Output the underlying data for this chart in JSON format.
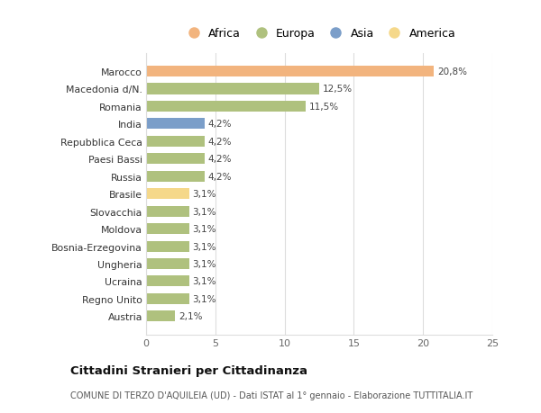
{
  "categories": [
    "Austria",
    "Regno Unito",
    "Ucraina",
    "Ungheria",
    "Bosnia-Erzegovina",
    "Moldova",
    "Slovacchia",
    "Brasile",
    "Russia",
    "Paesi Bassi",
    "Repubblica Ceca",
    "India",
    "Romania",
    "Macedonia d/N.",
    "Marocco"
  ],
  "values": [
    2.1,
    3.1,
    3.1,
    3.1,
    3.1,
    3.1,
    3.1,
    3.1,
    4.2,
    4.2,
    4.2,
    4.2,
    11.5,
    12.5,
    20.8
  ],
  "labels": [
    "2,1%",
    "3,1%",
    "3,1%",
    "3,1%",
    "3,1%",
    "3,1%",
    "3,1%",
    "3,1%",
    "4,2%",
    "4,2%",
    "4,2%",
    "4,2%",
    "11,5%",
    "12,5%",
    "20,8%"
  ],
  "colors": [
    "#afc17e",
    "#afc17e",
    "#afc17e",
    "#afc17e",
    "#afc17e",
    "#afc17e",
    "#afc17e",
    "#f5d88a",
    "#afc17e",
    "#afc17e",
    "#afc17e",
    "#7b9ec9",
    "#afc17e",
    "#afc17e",
    "#f2b47e"
  ],
  "legend": [
    {
      "label": "Africa",
      "color": "#f2b47e"
    },
    {
      "label": "Europa",
      "color": "#afc17e"
    },
    {
      "label": "Asia",
      "color": "#7b9ec9"
    },
    {
      "label": "America",
      "color": "#f5d88a"
    }
  ],
  "xlim": [
    0,
    25
  ],
  "xticks": [
    0,
    5,
    10,
    15,
    20,
    25
  ],
  "title": "Cittadini Stranieri per Cittadinanza",
  "subtitle": "COMUNE DI TERZO D'AQUILEIA (UD) - Dati ISTAT al 1° gennaio - Elaborazione TUTTITALIA.IT",
  "bg_color": "#ffffff",
  "grid_color": "#dddddd"
}
